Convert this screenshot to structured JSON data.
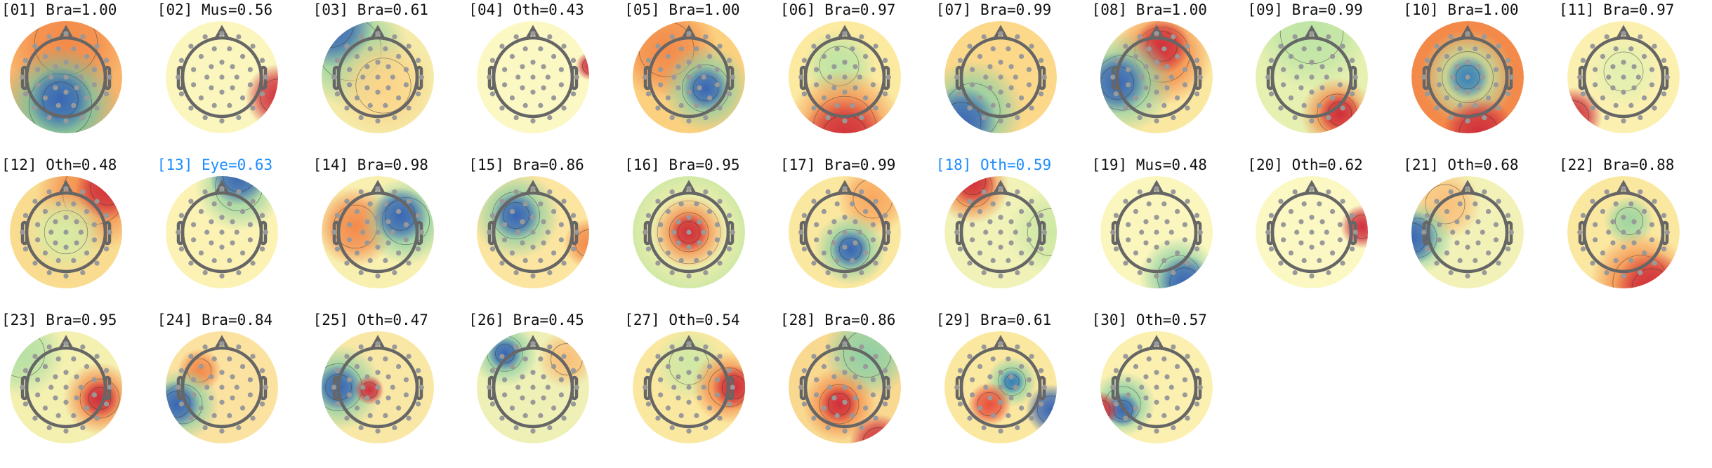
{
  "highlight_color": "#1a8cff",
  "colormap": [
    "#3a66b5",
    "#8fd0a5",
    "#fbf8c4",
    "#f38a4a",
    "#d0303c"
  ],
  "components": [
    {
      "title": "[01] Bra=1.00",
      "highlighted": false
    },
    {
      "title": "[02] Mus=0.56",
      "highlighted": false
    },
    {
      "title": "[03] Bra=0.61",
      "highlighted": false
    },
    {
      "title": "[04] Oth=0.43",
      "highlighted": false
    },
    {
      "title": "[05] Bra=1.00",
      "highlighted": false
    },
    {
      "title": "[06] Bra=0.97",
      "highlighted": false
    },
    {
      "title": "[07] Bra=0.99",
      "highlighted": false
    },
    {
      "title": "[08] Bra=1.00",
      "highlighted": false
    },
    {
      "title": "[09] Bra=0.99",
      "highlighted": false
    },
    {
      "title": "[10] Bra=1.00",
      "highlighted": false
    },
    {
      "title": "[11] Bra=0.97",
      "highlighted": false
    },
    {
      "title": "[12] Oth=0.48",
      "highlighted": false
    },
    {
      "title": "[13] Eye=0.63",
      "highlighted": true
    },
    {
      "title": "[14] Bra=0.98",
      "highlighted": false
    },
    {
      "title": "[15] Bra=0.86",
      "highlighted": false
    },
    {
      "title": "[16] Bra=0.95",
      "highlighted": false
    },
    {
      "title": "[17] Bra=0.99",
      "highlighted": false
    },
    {
      "title": "[18] Oth=0.59",
      "highlighted": true
    },
    {
      "title": "[19] Mus=0.48",
      "highlighted": false
    },
    {
      "title": "[20] Oth=0.62",
      "highlighted": false
    },
    {
      "title": "[21] Oth=0.68",
      "highlighted": false
    },
    {
      "title": "[22] Bra=0.88",
      "highlighted": false
    },
    {
      "title": "[23] Bra=0.95",
      "highlighted": false
    },
    {
      "title": "[24] Bra=0.84",
      "highlighted": false
    },
    {
      "title": "[25] Oth=0.47",
      "highlighted": false
    },
    {
      "title": "[26] Bra=0.45",
      "highlighted": false
    },
    {
      "title": "[27] Oth=0.54",
      "highlighted": false
    },
    {
      "title": "[28] Bra=0.86",
      "highlighted": false
    },
    {
      "title": "[29] Bra=0.61",
      "highlighted": false
    },
    {
      "title": "[30] Oth=0.57",
      "highlighted": false
    }
  ]
}
